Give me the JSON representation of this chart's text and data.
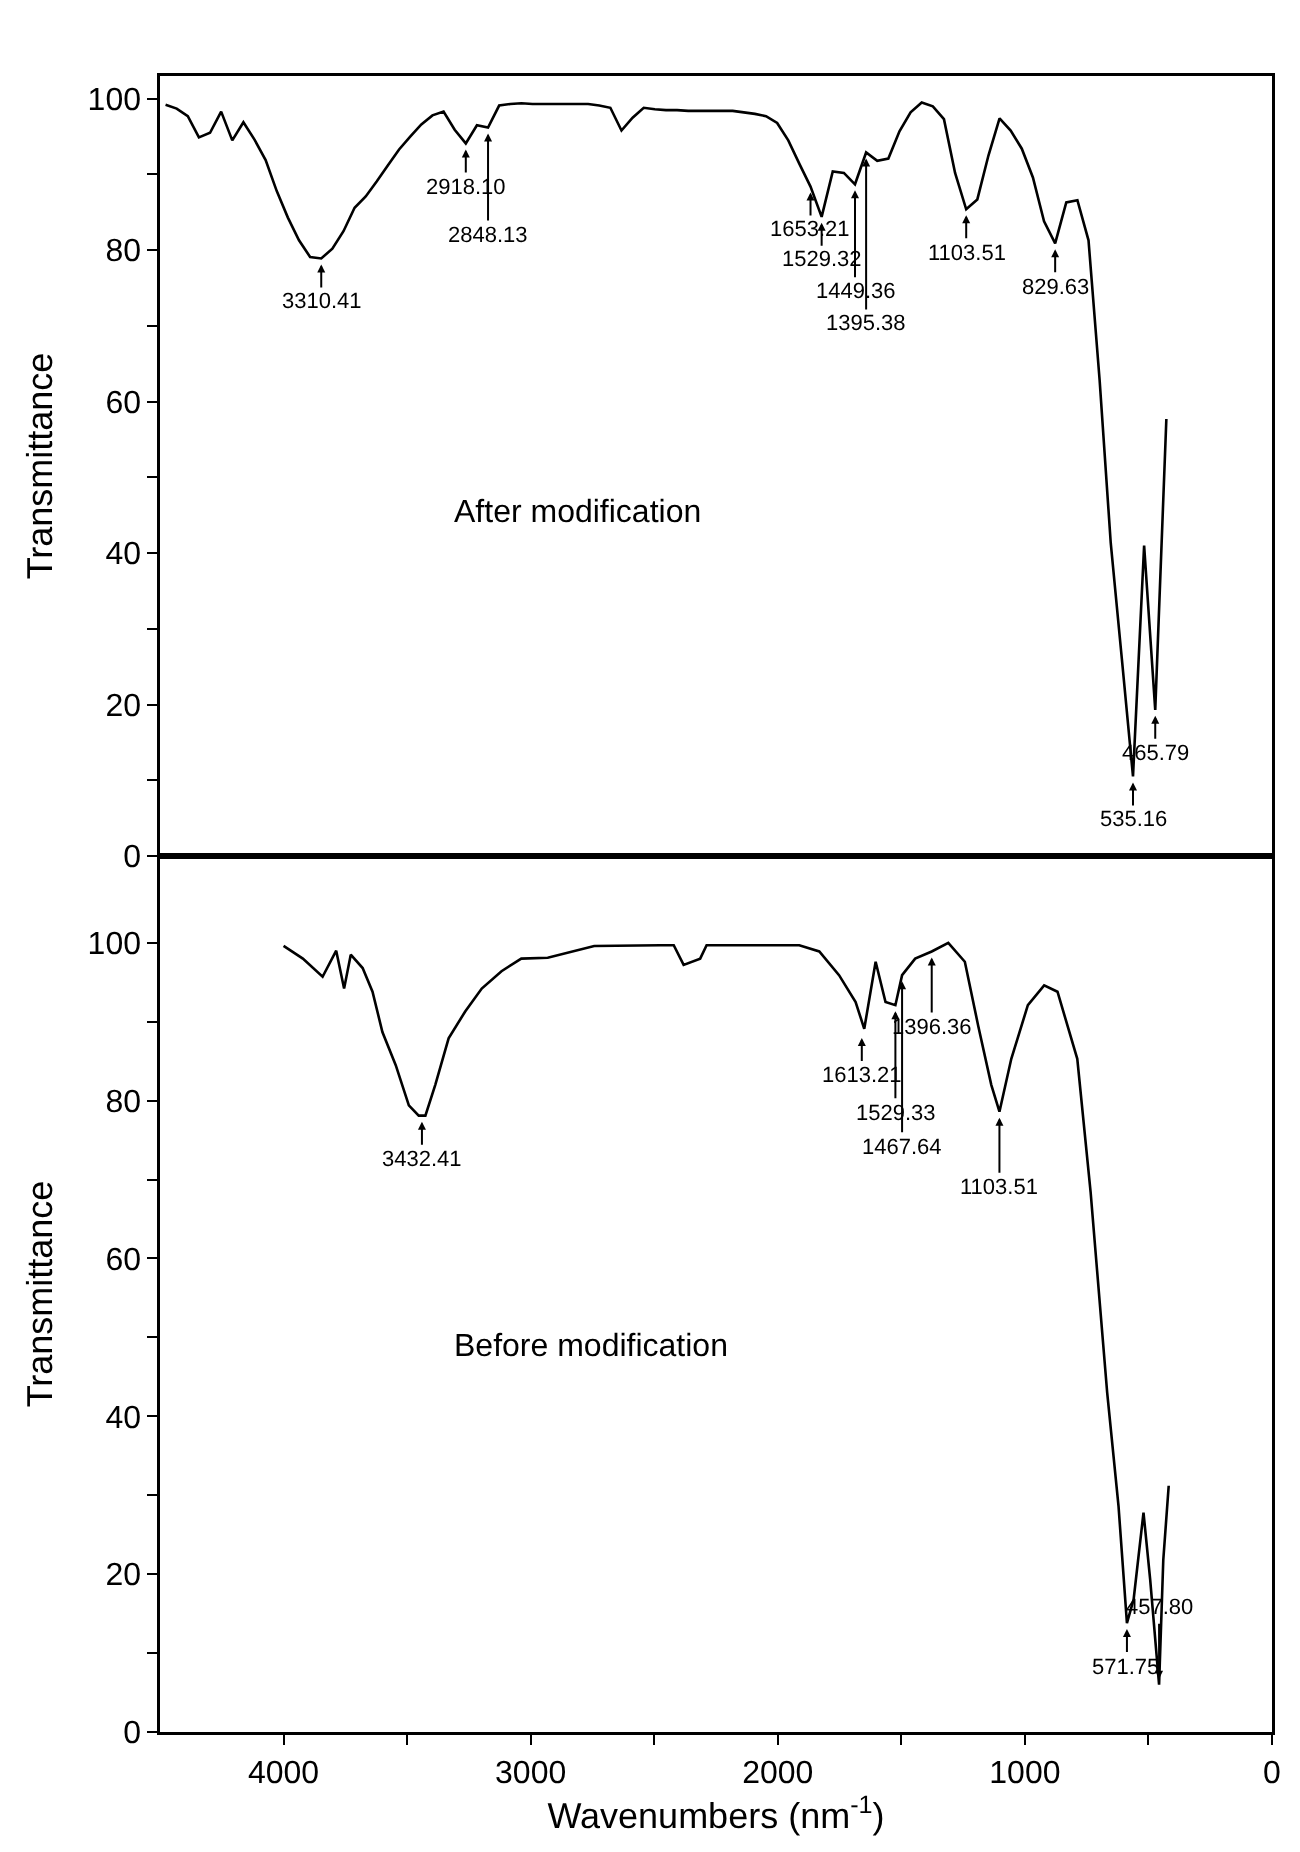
{
  "chart_data": [
    {
      "type": "line",
      "ylabel": "Transmittance",
      "tick_labels": "y",
      "categories": [
        null,
        null,
        null,
        null,
        null,
        null,
        null,
        null,
        null,
        null,
        null,
        null,
        null,
        null,
        null,
        null,
        null,
        null,
        null,
        null,
        null,
        null,
        null,
        null,
        null,
        null,
        null,
        null,
        null,
        null,
        null,
        null,
        null,
        null,
        null,
        null,
        null,
        null,
        null,
        null,
        null,
        null,
        null,
        null,
        null,
        null,
        null,
        null,
        null,
        null,
        null,
        null,
        null,
        null,
        null,
        null,
        null,
        null,
        null,
        null,
        null,
        null,
        null,
        null,
        null,
        null,
        null,
        null,
        null,
        null,
        null,
        null,
        null,
        null,
        null,
        null,
        null,
        null,
        null,
        null,
        null,
        null,
        null,
        null,
        null,
        null,
        null,
        null,
        null,
        null,
        null,
        null,
        null,
        null,
        null,
        null,
        null,
        null,
        null,
        null
      ],
      "ylim": [
        0,
        103
      ],
      "yticks": [
        0,
        {
          "value": 10,
          "label": null
        },
        20,
        {
          "value": 30,
          "label": null
        },
        40,
        {
          "value": 50,
          "label": null
        },
        60,
        {
          "value": 70,
          "label": null
        },
        80,
        {
          "value": 90,
          "label": null
        },
        100
      ],
      "series": [
        {
          "color": "#000000",
          "values": [
            99.2,
            98.7,
            97.7,
            94.9,
            95.5,
            98.3,
            94.5,
            96.9,
            94.6,
            91.9,
            87.8,
            84.3,
            81.3,
            79.1,
            78.9,
            80.2,
            82.5,
            85.6,
            87.1,
            89.1,
            91.2,
            93.3,
            95.0,
            96.6,
            97.8,
            98.3,
            95.9,
            94.1,
            96.5,
            96.2,
            99.1,
            99.3,
            99.4,
            99.3,
            99.3,
            99.3,
            99.3,
            99.3,
            99.3,
            99.1,
            98.8,
            95.8,
            97.5,
            98.8,
            98.6,
            98.5,
            98.5,
            98.4,
            98.4,
            98.4,
            98.4,
            98.4,
            98.2,
            98.0,
            97.7,
            96.8,
            94.5,
            91.4,
            88.4,
            84.4,
            90.4,
            90.2,
            88.7,
            92.9,
            91.8,
            92.1,
            95.7,
            98.2,
            99.5,
            99.0,
            97.3,
            90.2,
            85.4,
            86.7,
            92.5,
            97.4,
            95.8,
            93.4,
            89.6,
            83.8,
            80.9,
            86.3,
            86.6,
            81.3,
            62.8,
            41.3,
            26.0,
            10.5,
            41,
            19.3,
            57.7,
            null,
            null,
            null,
            null,
            null,
            null,
            null,
            null,
            null
          ]
        }
      ],
      "annotations": [
        "After modification",
        {
          "text": "3310.41",
          "y": 78.9
        },
        {
          "text": "2918.10",
          "y": 94.1
        },
        {
          "text": "2848.13",
          "y": 96.2
        },
        {
          "text": "1653.21",
          "y": 88.4
        },
        {
          "text": "1529.32",
          "y": 84.4
        },
        {
          "text": "1449.36",
          "y": 88.7
        },
        {
          "text": "1395.38",
          "y": 92.9
        },
        {
          "text": "1103.51",
          "y": 85.4
        },
        {
          "text": "829.63",
          "y": 80.9
        },
        {
          "text": "535.16",
          "y": 10.5
        },
        {
          "text": "465.79",
          "y": 19.3
        }
      ]
    },
    {
      "type": "line",
      "ylabel": "Transmittance",
      "xlabel": "Wavenumbers (nm$^{-1}$)",
      "xlim": [
        4500,
        0
      ],
      "xticks": [
        4000,
        {
          "value": 3500,
          "label": null
        },
        3000,
        {
          "value": 2500,
          "label": null
        },
        2000,
        {
          "value": 1500,
          "label": null
        },
        1000,
        {
          "value": 500,
          "label": null
        },
        0
      ],
      "ylim": [
        0,
        111
      ],
      "yticks": [
        0,
        {
          "value": 10,
          "label": null
        },
        20,
        {
          "value": 30,
          "label": null
        },
        40,
        {
          "value": 50,
          "label": null
        },
        60,
        {
          "value": 70,
          "label": null
        },
        80,
        {
          "value": 90,
          "label": null
        },
        100
      ],
      "x": [
        4000,
        3922,
        3842,
        3787,
        3755,
        3728,
        3680,
        3640,
        3600,
        3546,
        3493,
        3453,
        3426,
        3386,
        3332,
        3265,
        3198,
        3118,
        3038,
        2931,
        2743,
        2475,
        2421,
        2381,
        2314,
        2288,
        1913,
        1832,
        1752,
        1685,
        1650,
        1604,
        1564,
        1524,
        1497,
        1444,
        1377,
        1310,
        1243,
        1189,
        1136,
        1103,
        1055,
        988,
        922,
        868,
        788,
        734,
        667,
        621,
        587,
        560,
        520,
        493,
        457,
        440,
        418
      ],
      "series": [
        {
          "color": "#000000",
          "values": [
            99.6,
            98,
            95.7,
            99,
            94.2,
            98.5,
            96.8,
            93.8,
            88.7,
            84.5,
            79.4,
            78.1,
            78.1,
            82,
            87.9,
            91.3,
            94.2,
            96.4,
            98,
            98.1,
            99.6,
            99.7,
            99.7,
            97.2,
            98,
            99.7,
            99.7,
            98.9,
            95.9,
            92.5,
            89.1,
            97.6,
            92.5,
            92.1,
            95.9,
            98,
            98.9,
            100,
            97.6,
            89.5,
            82,
            78.6,
            85.3,
            92.1,
            94.6,
            93.8,
            85.3,
            68.4,
            43,
            28.6,
            13.8,
            16.8,
            27.8,
            19.3,
            6,
            21.8,
            31.2
          ]
        }
      ],
      "annotations": [
        "Before modification",
        {
          "text": "3432.41",
          "x": 3440,
          "y": 78.1
        },
        {
          "text": "1613.21",
          "x": 1660,
          "y": 88.7
        },
        {
          "text": "1529.33",
          "x": 1524,
          "y": 92.1
        },
        {
          "text": "1467.64",
          "x": 1497,
          "y": 95.9
        },
        {
          "text": "1396.36",
          "x": 1377,
          "y": 98.9
        },
        {
          "text": "1103.51",
          "x": 1103,
          "y": 78.6
        },
        {
          "text": "571.75",
          "x": 587,
          "y": 13.8
        },
        {
          "text": "457.80",
          "x": 457,
          "y": 6
        }
      ]
    }
  ]
}
